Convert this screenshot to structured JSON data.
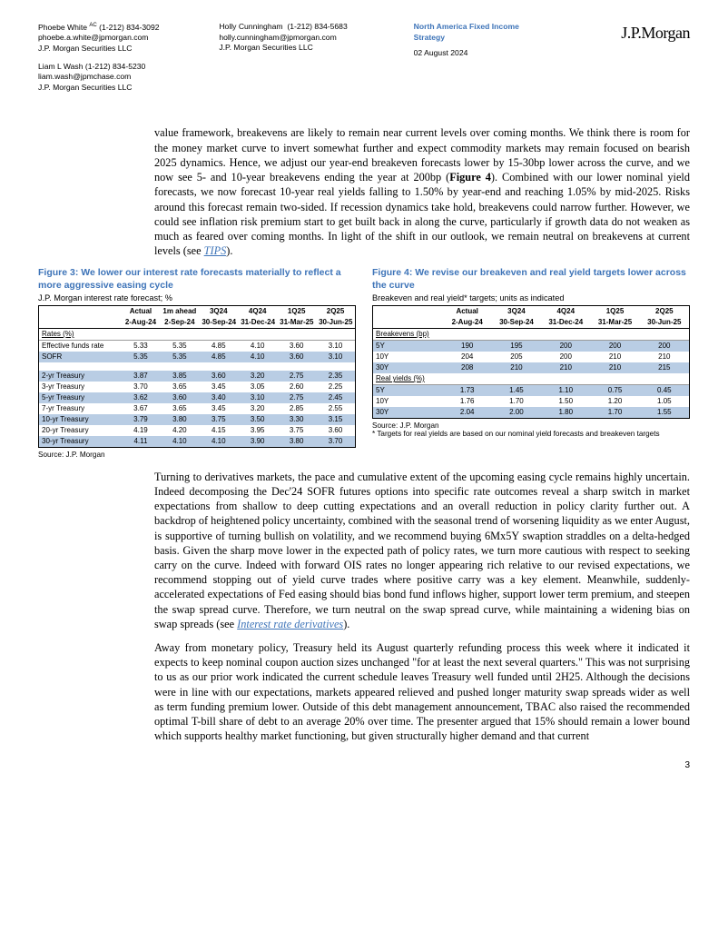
{
  "header": {
    "contacts_col1": [
      {
        "name": "Phoebe White",
        "suffix": "AC",
        "phone": "(1-212) 834-3092",
        "email": "phoebe.a.white@jpmorgan.com",
        "org": "J.P. Morgan Securities LLC"
      },
      {
        "name": "Liam L Wash",
        "suffix": "",
        "phone": "(1-212) 834-5230",
        "email": "liam.wash@jpmchase.com",
        "org": "J.P. Morgan Securities LLC"
      }
    ],
    "contacts_col2": [
      {
        "name": "Holly Cunningham",
        "suffix": "",
        "phone": "(1-212) 834-5683",
        "email": "holly.cunningham@jpmorgan.com",
        "org": "J.P. Morgan Securities LLC"
      }
    ],
    "doc_title": "North America Fixed Income Strategy",
    "date": "02 August 2024",
    "logo": "J.P.Morgan"
  },
  "para1": {
    "text_pre": "value framework, breakevens are likely to remain near current levels over coming months. We think there is room for the money market curve to invert somewhat further and expect commodity markets may remain focused on bearish 2025 dynamics. Hence, we adjust our year-end breakeven forecasts lower by 15-30bp lower across the curve, and we now see 5- and 10-year breakevens ending the year at 200bp (",
    "bold": "Figure 4",
    "text_mid": "). Combined with our lower nominal yield forecasts, we now forecast 10-year real yields falling to 1.50% by year-end and reaching 1.05% by mid-2025. Risks around this forecast remain two-sided. If recession dynamics take hold, breakevens could narrow further. However, we could see inflation risk premium start to get built back in along the curve, particularly if growth data do not weaken as much as feared over coming months. In light of the shift in our outlook, we remain neutral on breakevens at current levels (see ",
    "link": "TIPS",
    "text_post": ")."
  },
  "fig3": {
    "title": "Figure 3: We lower our interest rate forecasts materially to reflect a more aggressive easing cycle",
    "subtitle": "J.P. Morgan interest rate forecast; %",
    "header1": [
      "",
      "Actual",
      "1m ahead",
      "3Q24",
      "4Q24",
      "1Q25",
      "2Q25"
    ],
    "header2": [
      "",
      "2-Aug-24",
      "2-Sep-24",
      "30-Sep-24",
      "31-Dec-24",
      "31-Mar-25",
      "30-Jun-25"
    ],
    "section1": "Rates (%)",
    "rows1": [
      {
        "label": "Effective funds rate",
        "vals": [
          "5.33",
          "5.35",
          "4.85",
          "4.10",
          "3.60",
          "3.10"
        ],
        "hl": false
      },
      {
        "label": "SOFR",
        "vals": [
          "5.35",
          "5.35",
          "4.85",
          "4.10",
          "3.60",
          "3.10"
        ],
        "hl": true
      }
    ],
    "rows2": [
      {
        "label": "2-yr Treasury",
        "vals": [
          "3.87",
          "3.85",
          "3.60",
          "3.20",
          "2.75",
          "2.35"
        ],
        "hl": true
      },
      {
        "label": "3-yr Treasury",
        "vals": [
          "3.70",
          "3.65",
          "3.45",
          "3.05",
          "2.60",
          "2.25"
        ],
        "hl": false
      },
      {
        "label": "5-yr Treasury",
        "vals": [
          "3.62",
          "3.60",
          "3.40",
          "3.10",
          "2.75",
          "2.45"
        ],
        "hl": true
      },
      {
        "label": "7-yr Treasury",
        "vals": [
          "3.67",
          "3.65",
          "3.45",
          "3.20",
          "2.85",
          "2.55"
        ],
        "hl": false
      },
      {
        "label": "10-yr Treasury",
        "vals": [
          "3.79",
          "3.80",
          "3.75",
          "3.50",
          "3.30",
          "3.15"
        ],
        "hl": true
      },
      {
        "label": "20-yr Treasury",
        "vals": [
          "4.19",
          "4.20",
          "4.15",
          "3.95",
          "3.75",
          "3.60"
        ],
        "hl": false
      },
      {
        "label": "30-yr Treasury",
        "vals": [
          "4.11",
          "4.10",
          "4.10",
          "3.90",
          "3.80",
          "3.70"
        ],
        "hl": true
      }
    ],
    "source": "Source: J.P. Morgan",
    "colors": {
      "highlight_bg": "#b9cde4",
      "border": "#000000"
    }
  },
  "fig4": {
    "title": "Figure 4: We revise our breakeven and real yield targets lower across the curve",
    "subtitle": "Breakeven and real yield* targets; units as indicated",
    "header1": [
      "",
      "Actual",
      "3Q24",
      "4Q24",
      "1Q25",
      "2Q25"
    ],
    "header2": [
      "",
      "2-Aug-24",
      "30-Sep-24",
      "31-Dec-24",
      "31-Mar-25",
      "30-Jun-25"
    ],
    "section1": "Breakevens (bp)",
    "rows1": [
      {
        "label": "5Y",
        "vals": [
          "190",
          "195",
          "200",
          "200",
          "200"
        ],
        "hl": true
      },
      {
        "label": "10Y",
        "vals": [
          "204",
          "205",
          "200",
          "210",
          "210"
        ],
        "hl": false
      },
      {
        "label": "30Y",
        "vals": [
          "208",
          "210",
          "210",
          "210",
          "215"
        ],
        "hl": true
      }
    ],
    "section2": "Real yields (%)",
    "rows2": [
      {
        "label": "5Y",
        "vals": [
          "1.73",
          "1.45",
          "1.10",
          "0.75",
          "0.45"
        ],
        "hl": true
      },
      {
        "label": "10Y",
        "vals": [
          "1.76",
          "1.70",
          "1.50",
          "1.20",
          "1.05"
        ],
        "hl": false
      },
      {
        "label": "30Y",
        "vals": [
          "2.04",
          "2.00",
          "1.80",
          "1.70",
          "1.55"
        ],
        "hl": true
      }
    ],
    "source": "Source: J.P. Morgan",
    "footnote": "* Targets for real yields are based on our nominal yield forecasts and breakeven targets",
    "colors": {
      "highlight_bg": "#b9cde4",
      "border": "#000000"
    }
  },
  "para2": {
    "text_pre": "Turning to derivatives markets, the pace and cumulative extent of the upcoming easing cycle remains highly uncertain. Indeed decomposing the Dec'24 SOFR futures options into specific rate outcomes reveal a sharp switch in market expectations from shallow to deep cutting expectations and an overall reduction in policy clarity further out. A backdrop of heightened policy uncertainty, combined with the seasonal trend of worsening liquidity as we enter August, is supportive of turning bullish on volatility, and we recommend buying 6Mx5Y swaption straddles on a delta-hedged basis. Given the sharp move lower in the expected path of policy rates, we turn more cautious with respect to seeking carry on the curve. Indeed with forward OIS rates no longer appearing rich relative to our revised expectations, we recommend stopping out of yield curve trades where positive carry was a key element. Meanwhile, suddenly-accelerated expectations of Fed easing should bias bond fund inflows higher, support lower term premium, and steepen the swap spread curve. Therefore, we turn neutral on the swap spread curve, while maintaining a widening bias on swap spreads (see ",
    "link": "Interest rate derivatives",
    "text_post": ")."
  },
  "para3": {
    "text": "Away from monetary policy, Treasury held its August quarterly refunding process this week where it indicated it expects to keep nominal coupon auction sizes unchanged \"for at least the next several quarters.\" This was not surprising to us as our prior work indicated the current schedule leaves Treasury well funded until 2H25. Although the decisions were in line with our expectations, markets appeared relieved and pushed longer maturity swap spreads wider as well as term funding premium lower. Outside of this debt management announcement, TBAC also raised the recommended optimal T-bill share of debt to an average 20% over time. The presenter argued that 15% should remain a lower bound which supports healthy market functioning, but given structurally higher demand and that current"
  },
  "page_number": "3"
}
